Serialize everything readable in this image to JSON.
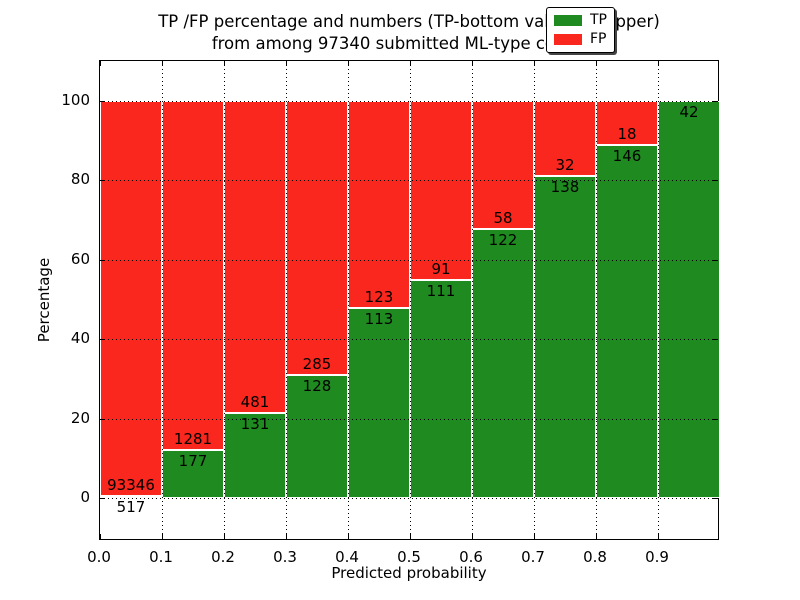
{
  "figure": {
    "title_lines": [
      "TP /FP percentage and numbers (TP-bottom value, FP-upper)",
      "from among 97340 submitted ML-type contacts"
    ]
  },
  "chart_data": {
    "type": "bar",
    "stacked": true,
    "title": "TP /FP percentage and numbers (TP-bottom value, FP-upper) from among 97340 submitted ML-type contacts",
    "xlabel": "Predicted probability",
    "ylabel": "Percentage",
    "total_contacts": 97340,
    "bin_width": 0.1,
    "categories": [
      "0.0-0.1",
      "0.1-0.2",
      "0.2-0.3",
      "0.3-0.4",
      "0.4-0.5",
      "0.5-0.6",
      "0.6-0.7",
      "0.7-0.8",
      "0.8-0.9",
      "0.9-1.0"
    ],
    "series": [
      {
        "name": "TP",
        "color": "#1f8a1f",
        "counts": [
          517,
          177,
          131,
          128,
          113,
          111,
          122,
          138,
          146,
          42
        ],
        "percent": [
          0.55,
          12.14,
          21.41,
          30.99,
          47.88,
          54.95,
          67.78,
          81.18,
          89.02,
          100.0
        ]
      },
      {
        "name": "FP",
        "color": "#f9271d",
        "counts": [
          93346,
          1281,
          481,
          285,
          123,
          91,
          58,
          32,
          18,
          0
        ],
        "percent": [
          99.45,
          87.86,
          78.59,
          69.01,
          52.12,
          45.05,
          32.22,
          18.82,
          10.98,
          0.0
        ]
      }
    ],
    "x_tick_labels": [
      "0.0",
      "0.1",
      "0.2",
      "0.3",
      "0.4",
      "0.5",
      "0.6",
      "0.7",
      "0.8",
      "0.9"
    ],
    "y_tick_values": [
      0,
      20,
      40,
      60,
      80,
      100
    ],
    "xlim": [
      0.0,
      1.0
    ],
    "ylim": [
      -11,
      110
    ],
    "grid": true,
    "grid_style": "black dotted, white bar edges",
    "legend_position": "upper right",
    "legend": {
      "items": [
        {
          "label": "TP",
          "color": "#1f8a1f"
        },
        {
          "label": "FP",
          "color": "#f9271d"
        }
      ]
    }
  }
}
